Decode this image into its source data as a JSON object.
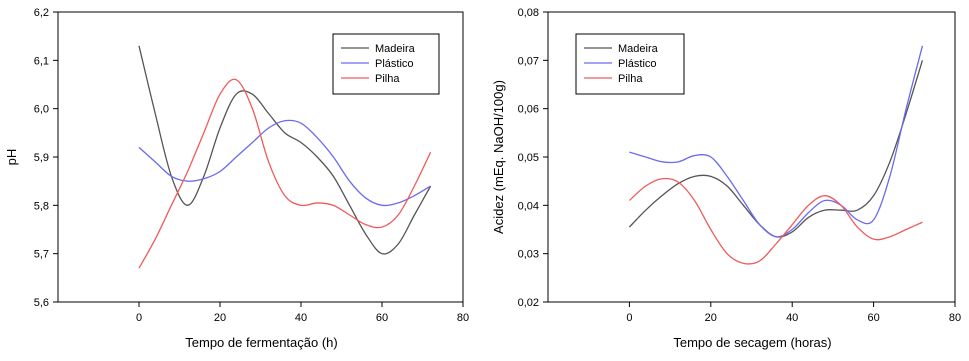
{
  "chart_data": [
    {
      "type": "line",
      "title": "",
      "xlabel": "Tempo de fermentação (h)",
      "ylabel": "pH",
      "xlim": [
        -20,
        80
      ],
      "ylim": [
        5.6,
        6.2
      ],
      "x_ticks": [
        0,
        20,
        40,
        60,
        80
      ],
      "x_tick_labels": [
        "0",
        "20",
        "40",
        "60",
        "80"
      ],
      "y_ticks": [
        5.6,
        5.7,
        5.8,
        5.9,
        6.0,
        6.1,
        6.2
      ],
      "y_tick_labels": [
        "5,6",
        "5,7",
        "5,8",
        "5,9",
        "6,0",
        "6,1",
        "6,2"
      ],
      "grid": false,
      "legend_position": "top-right",
      "series": [
        {
          "name": "Madeira",
          "color": "#555555",
          "x": [
            0,
            4,
            8,
            12,
            16,
            20,
            24,
            28,
            32,
            36,
            40,
            44,
            48,
            52,
            56,
            60,
            64,
            68,
            72
          ],
          "y": [
            6.13,
            5.99,
            5.86,
            5.8,
            5.86,
            5.96,
            6.03,
            6.03,
            5.99,
            5.95,
            5.93,
            5.9,
            5.86,
            5.8,
            5.74,
            5.7,
            5.72,
            5.78,
            5.84
          ]
        },
        {
          "name": "Plástico",
          "color": "#6a6af0",
          "x": [
            0,
            4,
            8,
            12,
            16,
            20,
            24,
            28,
            32,
            36,
            40,
            44,
            48,
            52,
            56,
            60,
            64,
            68,
            72
          ],
          "y": [
            5.92,
            5.89,
            5.86,
            5.85,
            5.855,
            5.87,
            5.9,
            5.93,
            5.96,
            5.975,
            5.97,
            5.94,
            5.9,
            5.85,
            5.815,
            5.8,
            5.805,
            5.82,
            5.84
          ]
        },
        {
          "name": "Pilha",
          "color": "#f05a5a",
          "x": [
            0,
            4,
            8,
            12,
            16,
            20,
            24,
            28,
            32,
            36,
            40,
            44,
            48,
            52,
            56,
            60,
            64,
            68,
            72
          ],
          "y": [
            5.67,
            5.73,
            5.8,
            5.87,
            5.95,
            6.03,
            6.06,
            6.0,
            5.89,
            5.82,
            5.8,
            5.805,
            5.8,
            5.78,
            5.76,
            5.755,
            5.78,
            5.84,
            5.91
          ]
        }
      ]
    },
    {
      "type": "line",
      "title": "",
      "xlabel": "Tempo de secagem (horas)",
      "ylabel": "Acidez (mEq. NaOH/100g)",
      "xlim": [
        -20,
        80
      ],
      "ylim": [
        0.02,
        0.08
      ],
      "x_ticks": [
        0,
        20,
        40,
        60,
        80
      ],
      "x_tick_labels": [
        "0",
        "20",
        "40",
        "60",
        "80"
      ],
      "y_ticks": [
        0.02,
        0.03,
        0.04,
        0.05,
        0.06,
        0.07,
        0.08
      ],
      "y_tick_labels": [
        "0,02",
        "0,03",
        "0,04",
        "0,05",
        "0,06",
        "0,07",
        "0,08"
      ],
      "grid": false,
      "legend_position": "top-left",
      "series": [
        {
          "name": "Madeira",
          "color": "#555555",
          "x": [
            0,
            4,
            8,
            12,
            16,
            20,
            24,
            28,
            32,
            36,
            40,
            44,
            48,
            52,
            56,
            60,
            64,
            68,
            72
          ],
          "y": [
            0.0355,
            0.039,
            0.042,
            0.0445,
            0.046,
            0.046,
            0.044,
            0.04,
            0.036,
            0.0335,
            0.0345,
            0.0375,
            0.039,
            0.039,
            0.039,
            0.042,
            0.049,
            0.059,
            0.07
          ]
        },
        {
          "name": "Plástico",
          "color": "#6a6af0",
          "x": [
            0,
            4,
            8,
            12,
            16,
            20,
            24,
            28,
            32,
            36,
            40,
            44,
            48,
            52,
            56,
            60,
            64,
            68,
            72
          ],
          "y": [
            0.051,
            0.05,
            0.049,
            0.049,
            0.0503,
            0.05,
            0.046,
            0.041,
            0.036,
            0.0335,
            0.035,
            0.0385,
            0.041,
            0.04,
            0.037,
            0.037,
            0.046,
            0.06,
            0.073
          ]
        },
        {
          "name": "Pilha",
          "color": "#f05a5a",
          "x": [
            0,
            4,
            8,
            12,
            16,
            20,
            24,
            28,
            32,
            36,
            40,
            44,
            48,
            52,
            56,
            60,
            64,
            68,
            72
          ],
          "y": [
            0.041,
            0.044,
            0.0455,
            0.0448,
            0.041,
            0.035,
            0.03,
            0.028,
            0.0285,
            0.032,
            0.036,
            0.04,
            0.042,
            0.04,
            0.0355,
            0.033,
            0.0335,
            0.035,
            0.0365
          ]
        }
      ]
    }
  ]
}
